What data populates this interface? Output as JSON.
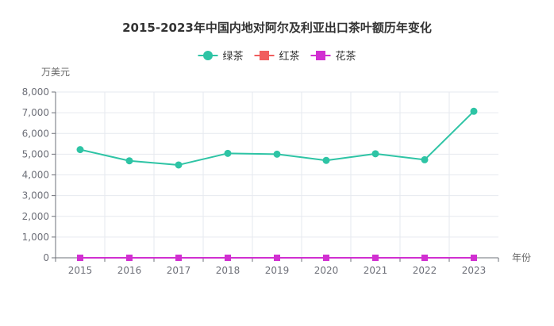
{
  "chart_data": {
    "type": "line",
    "title": "2015-2023年中国内地对阿尔及利亚出口茶叶额历年变化",
    "xlabel": "年份",
    "ylabel": "万美元",
    "categories": [
      "2015",
      "2016",
      "2017",
      "2018",
      "2019",
      "2020",
      "2021",
      "2022",
      "2023"
    ],
    "ylim": [
      0,
      8000
    ],
    "yticks": [
      0,
      1000,
      2000,
      3000,
      4000,
      5000,
      6000,
      7000,
      8000
    ],
    "ytick_labels": [
      "0",
      "1,000",
      "2,000",
      "3,000",
      "4,000",
      "5,000",
      "6,000",
      "7,000",
      "8,000"
    ],
    "grid": true,
    "legend_position": "top-center",
    "series": [
      {
        "name": "绿茶",
        "color": "#2ec4a5",
        "marker": "circle",
        "values": [
          5220,
          4680,
          4480,
          5040,
          5000,
          4700,
          5020,
          4730,
          7070
        ]
      },
      {
        "name": "红茶",
        "color": "#f05e5e",
        "marker": "square",
        "values": [
          0,
          0,
          0,
          0,
          0,
          0,
          0,
          0,
          0
        ]
      },
      {
        "name": "花茶",
        "color": "#d12fd1",
        "marker": "square",
        "values": [
          0,
          0,
          0,
          0,
          0,
          0,
          0,
          0,
          0
        ]
      }
    ]
  }
}
